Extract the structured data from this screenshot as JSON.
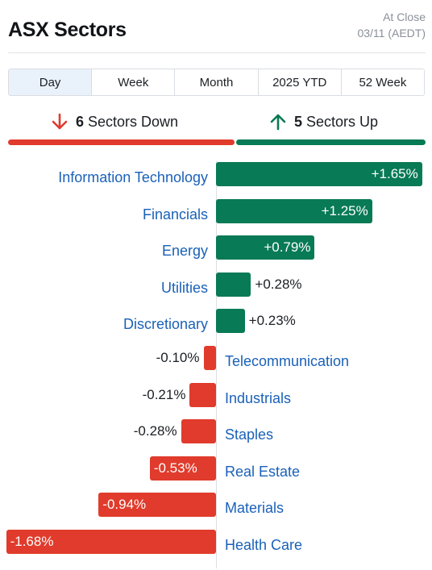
{
  "header": {
    "title": "ASX Sectors",
    "status": "At Close",
    "date": "03/11 (AEDT)"
  },
  "tabs": [
    {
      "label": "Day",
      "active": true
    },
    {
      "label": "Week",
      "active": false
    },
    {
      "label": "Month",
      "active": false
    },
    {
      "label": "2025 YTD",
      "active": false
    },
    {
      "label": "52 Week",
      "active": false
    }
  ],
  "summary": {
    "down_count": "6",
    "down_label": "Sectors Down",
    "up_count": "5",
    "up_label": "Sectors Up",
    "down_icon": "arrow-down-icon",
    "up_icon": "arrow-up-icon"
  },
  "colors": {
    "up": "#087a55",
    "down": "#e03b2c",
    "link": "#1a61b8",
    "active_tab": "#e9f2fb"
  },
  "chart_data": {
    "type": "bar",
    "orientation": "horizontal",
    "unit": "%",
    "categories": [
      "Information Technology",
      "Financials",
      "Energy",
      "Utilities",
      "Discretionary",
      "Telecommunication",
      "Industrials",
      "Staples",
      "Real Estate",
      "Materials",
      "Health Care"
    ],
    "values": [
      1.65,
      1.25,
      0.79,
      0.28,
      0.23,
      -0.1,
      -0.21,
      -0.28,
      -0.53,
      -0.94,
      -1.68
    ],
    "value_labels": [
      "+1.65%",
      "+1.25%",
      "+0.79%",
      "+0.28%",
      "+0.23%",
      "-0.10%",
      "-0.21%",
      "-0.28%",
      "-0.53%",
      "-0.94%",
      "-1.68%"
    ]
  }
}
